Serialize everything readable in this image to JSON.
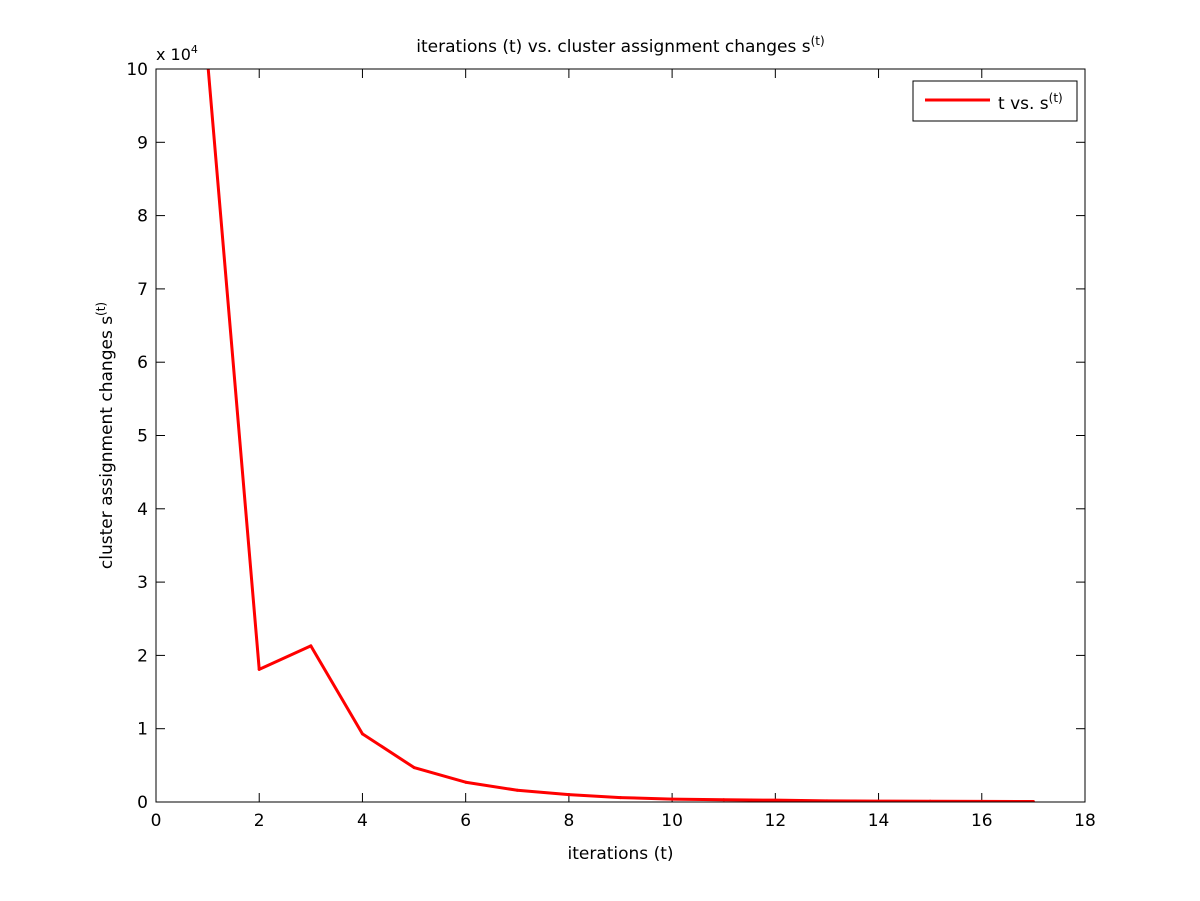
{
  "chart_data": {
    "type": "line",
    "title": {
      "main": "iterations (t) vs. cluster assignment changes s",
      "superscript": "(t)"
    },
    "xlabel": "iterations (t)",
    "ylabel": {
      "main": "cluster assignment changes s",
      "superscript": "(t)"
    },
    "y_exponent": {
      "prefix": "x 10",
      "power": "4"
    },
    "xlim": [
      0,
      18
    ],
    "ylim": [
      0,
      100000
    ],
    "x_ticks": [
      "0",
      "2",
      "4",
      "6",
      "8",
      "10",
      "12",
      "14",
      "16",
      "18"
    ],
    "y_ticks": [
      "0",
      "1",
      "2",
      "3",
      "4",
      "5",
      "6",
      "7",
      "8",
      "9",
      "10"
    ],
    "grid": false,
    "legend_position": "top-right",
    "series": [
      {
        "name": {
          "main": "t vs. s",
          "superscript": "(t)"
        },
        "color": "#ff0000",
        "x": [
          1,
          2,
          3,
          4,
          5,
          6,
          7,
          8,
          9,
          10,
          11,
          12,
          13,
          14,
          15,
          16,
          17
        ],
        "y": [
          101000,
          18100,
          21300,
          9300,
          4700,
          2700,
          1600,
          1000,
          600,
          400,
          300,
          250,
          150,
          120,
          100,
          80,
          60
        ]
      }
    ]
  }
}
